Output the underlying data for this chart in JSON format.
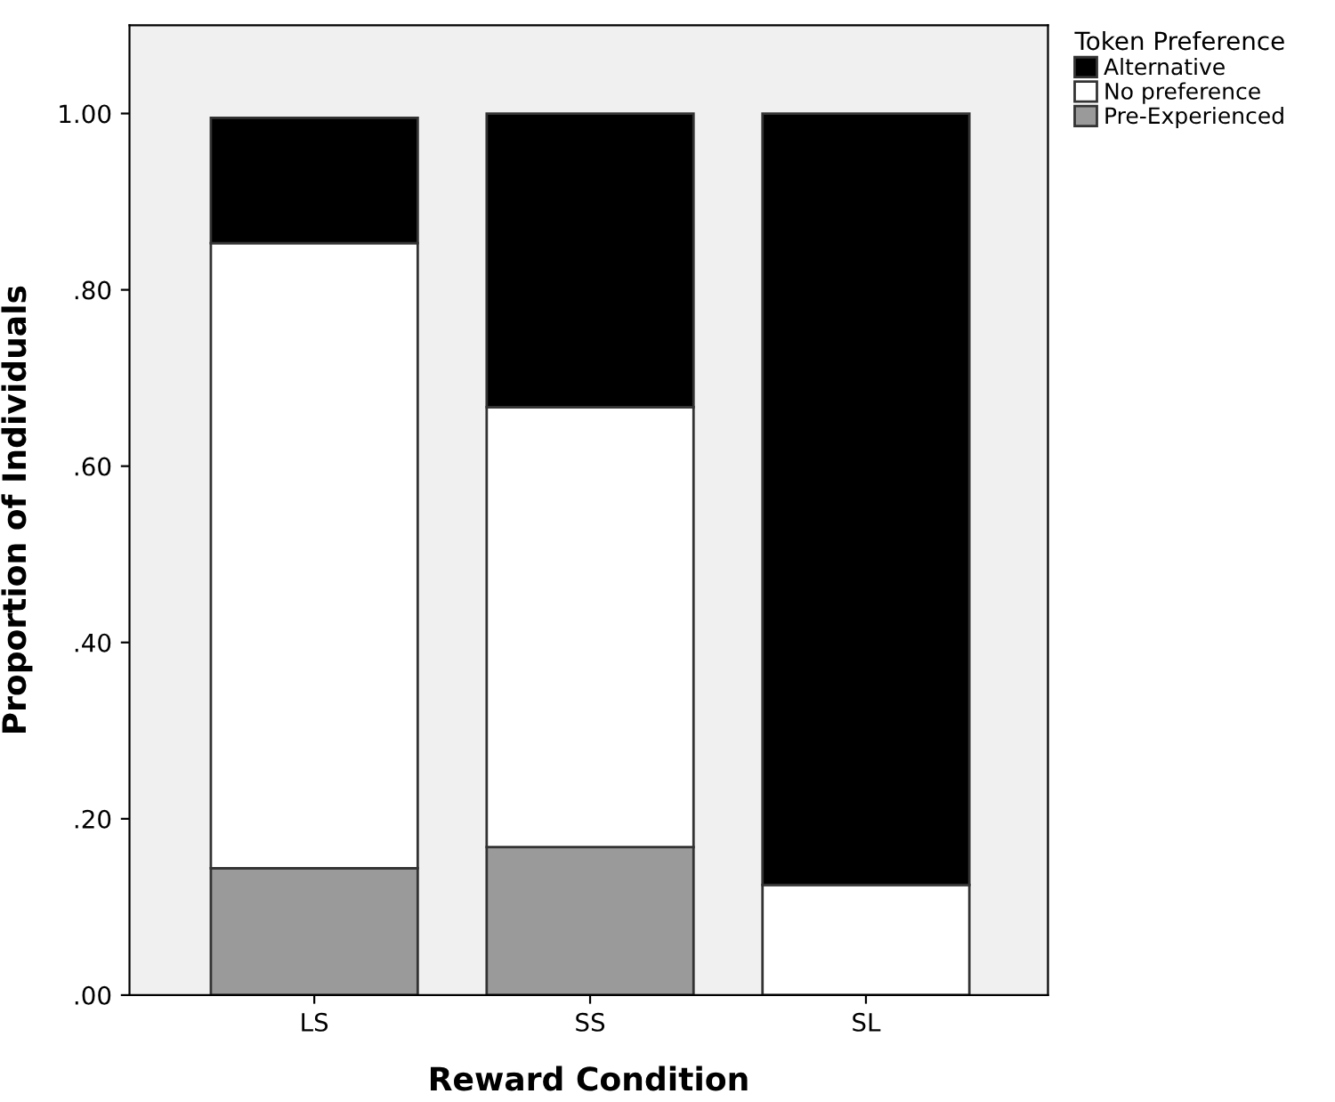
{
  "chart_data": {
    "type": "bar",
    "stacked": true,
    "xlabel": "Reward Condition",
    "ylabel": "Proportion of Individuals",
    "legend_title": "Token Preference",
    "legend": "top right",
    "categories": [
      "LS",
      "SS",
      "SL"
    ],
    "series": [
      {
        "name": "Pre-Experienced",
        "color": "#9a9a9a",
        "values": [
          0.144,
          0.168,
          0
        ]
      },
      {
        "name": "No preference",
        "color": "#ffffff",
        "values": [
          0.709,
          0.499,
          0.125
        ]
      },
      {
        "name": "Alternative",
        "color": "#000000",
        "values": [
          0.142,
          0.333,
          0.875
        ]
      }
    ],
    "ylim": [
      0,
      1.1
    ],
    "yticks": [
      {
        "value": 0,
        "label": ".00"
      },
      {
        "value": 0.2,
        "label": ".20"
      },
      {
        "value": 0.4,
        "label": ".40"
      },
      {
        "value": 0.6,
        "label": ".60"
      },
      {
        "value": 0.8,
        "label": ".80"
      },
      {
        "value": 1.0,
        "label": "1.00"
      }
    ],
    "grid": false
  }
}
